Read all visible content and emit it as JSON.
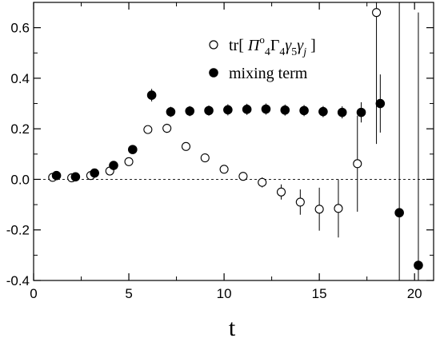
{
  "chart_data": {
    "type": "scatter",
    "title": "",
    "xlabel": "t",
    "ylabel": "",
    "xlim": [
      0,
      21
    ],
    "ylim": [
      -0.4,
      0.7
    ],
    "xticks": [
      0,
      5,
      10,
      15,
      20
    ],
    "yticks": [
      -0.4,
      -0.2,
      0.0,
      0.2,
      0.4,
      0.6
    ],
    "xtick_labels": [
      "0",
      "5",
      "10",
      "15",
      "20"
    ],
    "ytick_labels": [
      "-0.4",
      "-0.2",
      "0.0",
      "0.2",
      "0.4",
      "0.6"
    ],
    "reference_line": {
      "y": 0.0,
      "style": "dashed"
    },
    "legend_position": "top-right",
    "grid": false,
    "series": [
      {
        "name": "tr[ Π°₄Γ₄γ₅γⱼ ]",
        "marker": "open-circle",
        "x": [
          1,
          2,
          3,
          4,
          5,
          6,
          7,
          8,
          9,
          10,
          11,
          12,
          13,
          14,
          15,
          16,
          17,
          18
        ],
        "y": [
          0.008,
          0.006,
          0.015,
          0.033,
          0.07,
          0.197,
          0.202,
          0.13,
          0.085,
          0.04,
          0.012,
          -0.012,
          -0.05,
          -0.09,
          -0.118,
          -0.115,
          0.062,
          0.66
        ],
        "err": [
          0.004,
          0.004,
          0.006,
          0.008,
          0.012,
          0.016,
          0.018,
          0.014,
          0.014,
          0.016,
          0.017,
          0.02,
          0.03,
          0.05,
          0.085,
          0.115,
          0.19,
          0.52
        ]
      },
      {
        "name": "mixing term",
        "marker": "filled-circle",
        "x": [
          1.2,
          2.2,
          3.2,
          4.2,
          5.2,
          6.2,
          7.2,
          8.2,
          9.2,
          10.2,
          11.2,
          12.2,
          13.2,
          14.2,
          15.2,
          16.2,
          17.2,
          18.2,
          19.2,
          20.2
        ],
        "y": [
          0.015,
          0.01,
          0.025,
          0.055,
          0.118,
          0.333,
          0.267,
          0.27,
          0.272,
          0.275,
          0.277,
          0.278,
          0.274,
          0.272,
          0.268,
          0.265,
          0.265,
          0.3,
          -0.132,
          -0.34
        ],
        "err": [
          0.004,
          0.005,
          0.006,
          0.008,
          0.012,
          0.025,
          0.02,
          0.02,
          0.02,
          0.022,
          0.022,
          0.022,
          0.022,
          0.022,
          0.022,
          0.024,
          0.04,
          0.115,
          1.0,
          1.0
        ]
      }
    ]
  }
}
